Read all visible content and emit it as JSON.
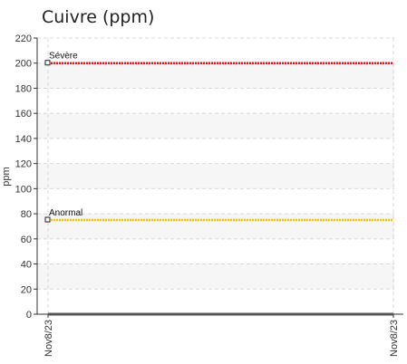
{
  "chart_data": {
    "type": "line",
    "title": "Cuivre (ppm)",
    "ylabel": "ppm",
    "xlabel": "",
    "x": [
      "Nov8/23",
      "Nov8/23"
    ],
    "ylim": [
      0,
      220
    ],
    "yticks": [
      0,
      20,
      40,
      60,
      80,
      100,
      120,
      140,
      160,
      180,
      200,
      220
    ],
    "grid": true,
    "thresholds": [
      {
        "label": "Sévère",
        "value": 200,
        "color": "#e8161c"
      },
      {
        "label": "Anormal",
        "value": 75,
        "color": "#f2c200"
      }
    ],
    "series": [
      {
        "values": [
          0,
          0
        ],
        "color": "#555555"
      }
    ]
  }
}
